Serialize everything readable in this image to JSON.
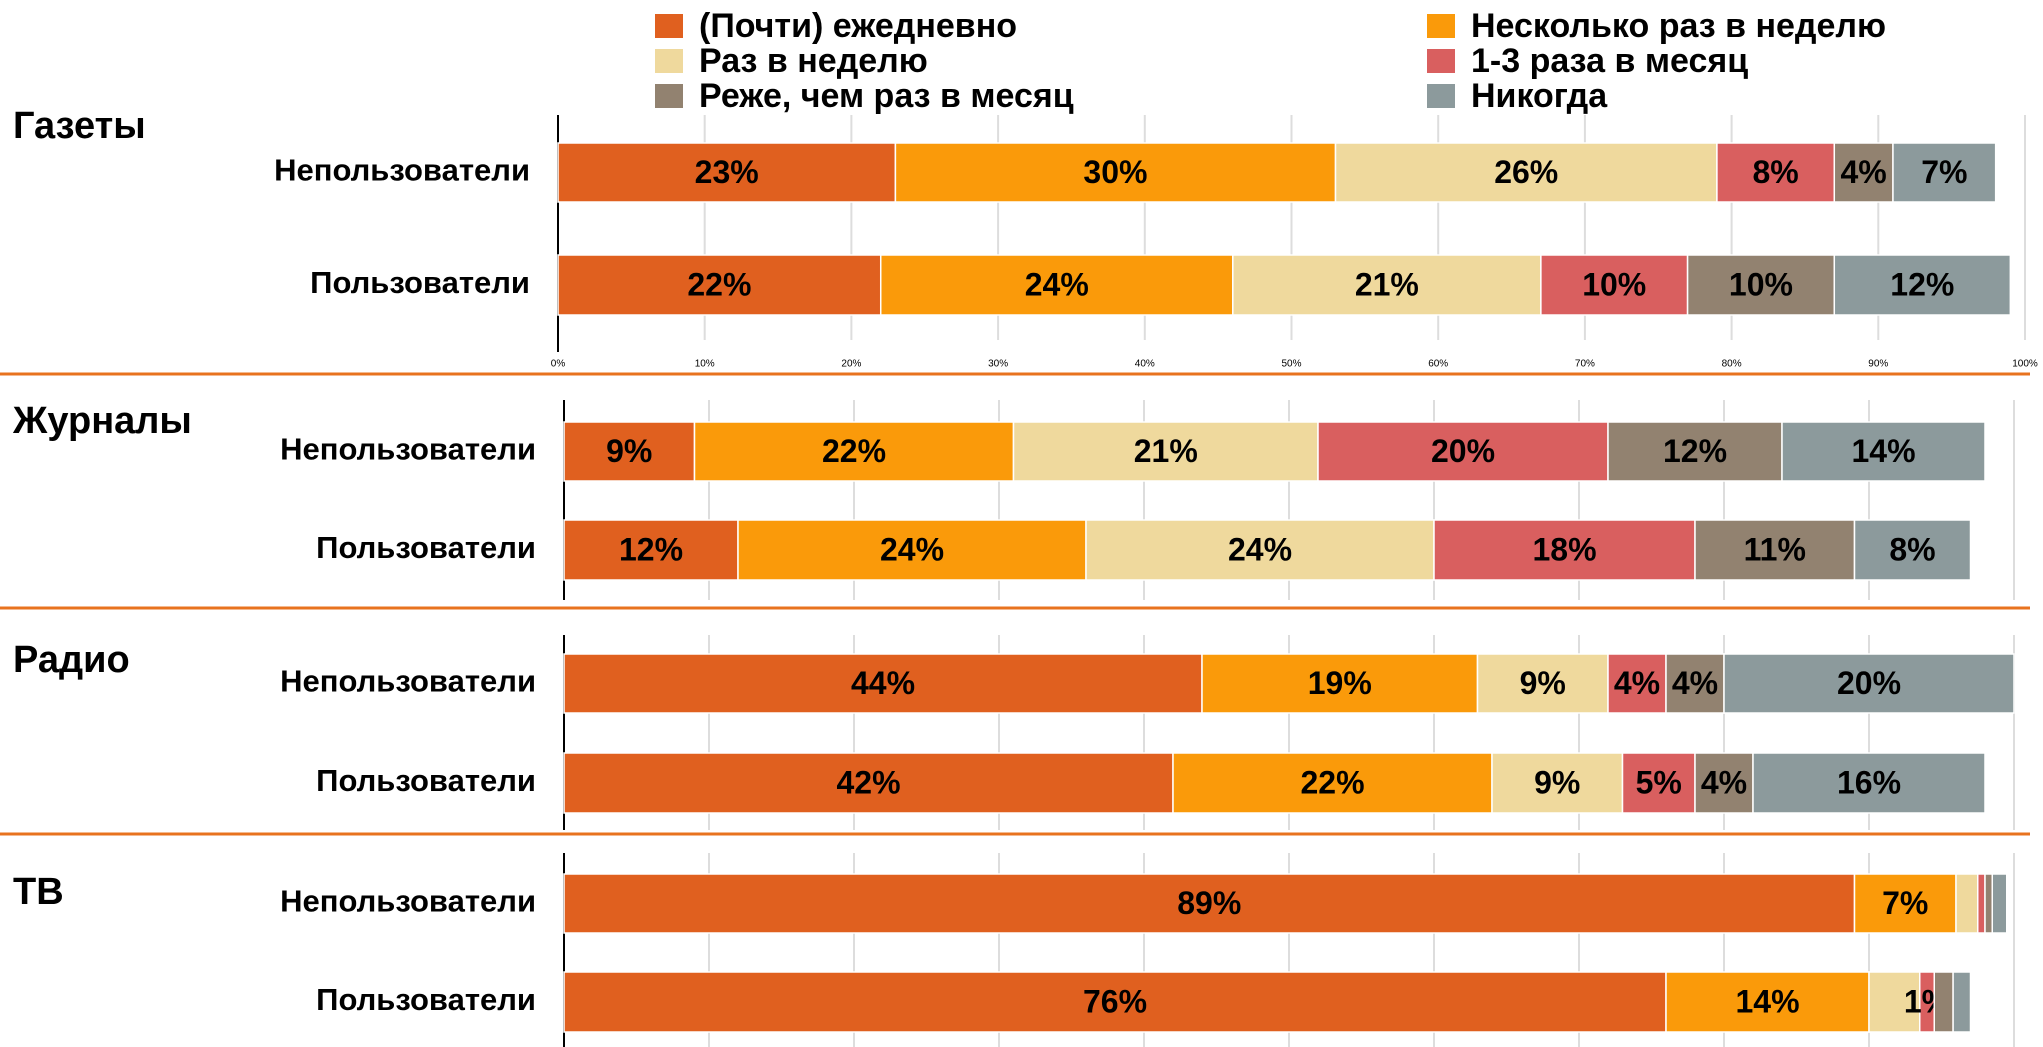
{
  "chart_data": [
    {
      "type": "bar",
      "title": "Газеты",
      "categories": [
        "Непользователи",
        "Пользователи"
      ],
      "xlim": [
        0,
        100
      ],
      "xticks": [
        {
          "value": 0,
          "label": "0%"
        },
        {
          "value": 10,
          "label": "10%"
        },
        {
          "value": 20,
          "label": "20%"
        },
        {
          "value": 30,
          "label": "30%"
        },
        {
          "value": 40,
          "label": "40%"
        },
        {
          "value": 50,
          "label": "50%"
        },
        {
          "value": 60,
          "label": "60%"
        },
        {
          "value": 70,
          "label": "70%"
        },
        {
          "value": 80,
          "label": "80%"
        },
        {
          "value": 90,
          "label": "90%"
        },
        {
          "value": 100,
          "label": "100%"
        }
      ],
      "grid": true,
      "series": [
        {
          "name": "(Почти) ежедневно",
          "color": "#e0601f",
          "values": [
            23,
            22
          ],
          "value_labels": [
            "23%",
            "22%"
          ]
        },
        {
          "name": "Несколько раз в неделю",
          "color": "#fa9a0a",
          "values": [
            30,
            24
          ],
          "value_labels": [
            "30%",
            "24%"
          ]
        },
        {
          "name": "Раз в неделю",
          "color": "#efd99d",
          "values": [
            26,
            21
          ],
          "value_labels": [
            "26%",
            "21%"
          ]
        },
        {
          "name": "1-3 раза в месяц",
          "color": "#d95f5f",
          "values": [
            8,
            10
          ],
          "value_labels": [
            "8%",
            "10%"
          ]
        },
        {
          "name": "Реже, чем раз в месяц",
          "color": "#928270",
          "values": [
            4,
            10
          ],
          "value_labels": [
            "4%",
            "10%"
          ]
        },
        {
          "name": "Никогда",
          "color": "#8c9a9c",
          "values": [
            7,
            12
          ],
          "value_labels": [
            "7%",
            "12%"
          ]
        }
      ]
    },
    {
      "type": "bar",
      "title": "Журналы",
      "categories": [
        "Непользователи",
        "Пользователи"
      ],
      "xlim": [
        0,
        100
      ],
      "grid": true,
      "series": [
        {
          "color": "#e0601f",
          "values": [
            9,
            12
          ],
          "value_labels": [
            "9%",
            "12%"
          ]
        },
        {
          "color": "#fa9a0a",
          "values": [
            22,
            24
          ],
          "value_labels": [
            "22%",
            "24%"
          ]
        },
        {
          "color": "#efd99d",
          "values": [
            21,
            24
          ],
          "value_labels": [
            "21%",
            "24%"
          ]
        },
        {
          "color": "#d95f5f",
          "values": [
            20,
            18
          ],
          "value_labels": [
            "20%",
            "18%"
          ]
        },
        {
          "color": "#928270",
          "values": [
            12,
            11
          ],
          "value_labels": [
            "12%",
            "11%"
          ]
        },
        {
          "color": "#8c9a9c",
          "values": [
            14,
            8
          ],
          "value_labels": [
            "14%",
            "8%"
          ]
        }
      ]
    },
    {
      "type": "bar",
      "title": "Радио",
      "categories": [
        "Непользователи",
        "Пользователи"
      ],
      "xlim": [
        0,
        100
      ],
      "grid": true,
      "series": [
        {
          "color": "#e0601f",
          "values": [
            44,
            42
          ],
          "value_labels": [
            "44%",
            "42%"
          ]
        },
        {
          "color": "#fa9a0a",
          "values": [
            19,
            22
          ],
          "value_labels": [
            "19%",
            "22%"
          ]
        },
        {
          "color": "#efd99d",
          "values": [
            9,
            9
          ],
          "value_labels": [
            "9%",
            "9%"
          ]
        },
        {
          "color": "#d95f5f",
          "values": [
            4,
            5
          ],
          "value_labels": [
            "4%",
            "5%"
          ]
        },
        {
          "color": "#928270",
          "values": [
            4,
            4
          ],
          "value_labels": [
            "4%",
            "4%"
          ]
        },
        {
          "color": "#8c9a9c",
          "values": [
            20,
            16
          ],
          "value_labels": [
            "20%",
            "16%"
          ]
        }
      ]
    },
    {
      "type": "bar",
      "title": "ТВ",
      "categories": [
        "Непользователи",
        "Пользователи"
      ],
      "xlim": [
        0,
        100
      ],
      "grid": true,
      "series": [
        {
          "color": "#e0601f",
          "values": [
            89,
            76
          ],
          "value_labels": [
            "89%",
            "76%"
          ]
        },
        {
          "color": "#fa9a0a",
          "values": [
            7,
            14
          ],
          "value_labels": [
            "7%",
            "14%"
          ]
        },
        {
          "color": "#efd99d",
          "values": [
            1.5,
            3.5
          ],
          "value_labels": [
            null,
            null
          ]
        },
        {
          "color": "#d95f5f",
          "values": [
            0.5,
            1
          ],
          "value_labels": [
            null,
            "1%"
          ]
        },
        {
          "color": "#928270",
          "values": [
            0.5,
            1.3
          ],
          "value_labels": [
            null,
            null
          ]
        },
        {
          "color": "#8c9a9c",
          "values": [
            1,
            1.2
          ],
          "value_labels": [
            null,
            null
          ]
        }
      ]
    }
  ]
}
